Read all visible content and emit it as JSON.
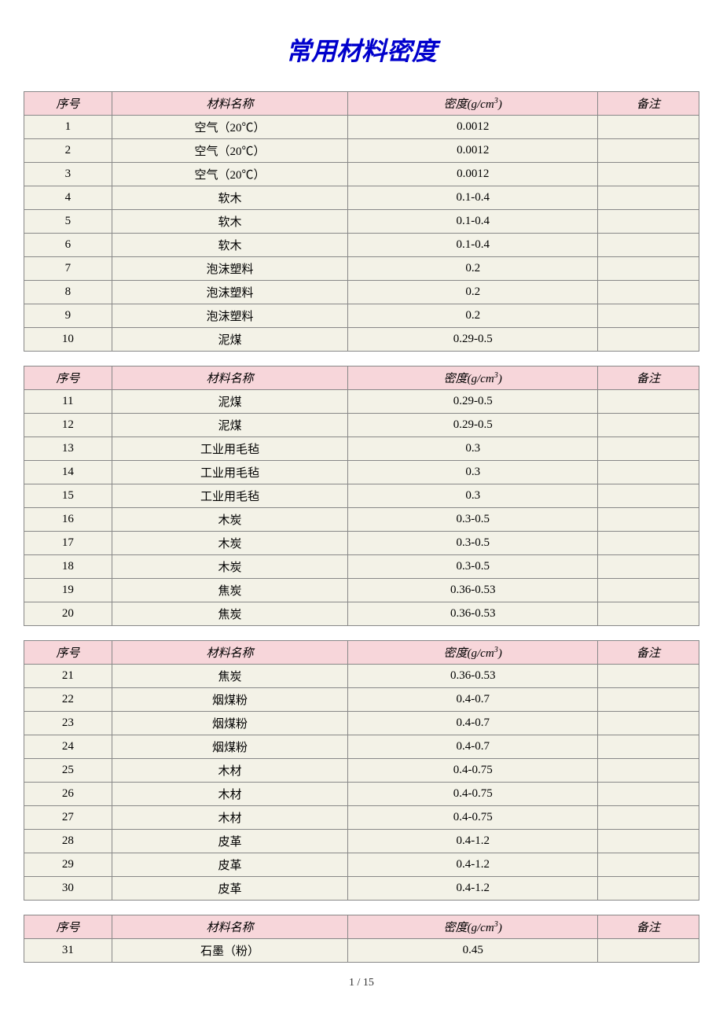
{
  "title": "常用材料密度",
  "headers": {
    "seq": "序号",
    "name": "材料名称",
    "density_prefix": "密度(g/cm",
    "density_suffix": ")",
    "note": "备注"
  },
  "colors": {
    "title": "#0000cc",
    "header_bg": "#f7d6da",
    "row_bg": "#f3f2e7",
    "border": "#888888",
    "page_bg": "#ffffff"
  },
  "tables": [
    {
      "rows": [
        {
          "seq": "1",
          "name": "空气（20℃）",
          "density": "0.0012",
          "note": ""
        },
        {
          "seq": "2",
          "name": "空气（20℃）",
          "density": "0.0012",
          "note": ""
        },
        {
          "seq": "3",
          "name": "空气（20℃）",
          "density": "0.0012",
          "note": ""
        },
        {
          "seq": "4",
          "name": "软木",
          "density": "0.1-0.4",
          "note": ""
        },
        {
          "seq": "5",
          "name": "软木",
          "density": "0.1-0.4",
          "note": ""
        },
        {
          "seq": "6",
          "name": "软木",
          "density": "0.1-0.4",
          "note": ""
        },
        {
          "seq": "7",
          "name": "泡沫塑料",
          "density": "0.2",
          "note": ""
        },
        {
          "seq": "8",
          "name": "泡沫塑料",
          "density": "0.2",
          "note": ""
        },
        {
          "seq": "9",
          "name": "泡沫塑料",
          "density": "0.2",
          "note": ""
        },
        {
          "seq": "10",
          "name": "泥煤",
          "density": "0.29-0.5",
          "note": ""
        }
      ]
    },
    {
      "rows": [
        {
          "seq": "11",
          "name": "泥煤",
          "density": "0.29-0.5",
          "note": ""
        },
        {
          "seq": "12",
          "name": "泥煤",
          "density": "0.29-0.5",
          "note": ""
        },
        {
          "seq": "13",
          "name": "工业用毛毡",
          "density": "0.3",
          "note": ""
        },
        {
          "seq": "14",
          "name": "工业用毛毡",
          "density": "0.3",
          "note": ""
        },
        {
          "seq": "15",
          "name": "工业用毛毡",
          "density": "0.3",
          "note": ""
        },
        {
          "seq": "16",
          "name": "木炭",
          "density": "0.3-0.5",
          "note": ""
        },
        {
          "seq": "17",
          "name": "木炭",
          "density": "0.3-0.5",
          "note": ""
        },
        {
          "seq": "18",
          "name": "木炭",
          "density": "0.3-0.5",
          "note": ""
        },
        {
          "seq": "19",
          "name": "焦炭",
          "density": "0.36-0.53",
          "note": ""
        },
        {
          "seq": "20",
          "name": "焦炭",
          "density": "0.36-0.53",
          "note": ""
        }
      ]
    },
    {
      "rows": [
        {
          "seq": "21",
          "name": "焦炭",
          "density": "0.36-0.53",
          "note": ""
        },
        {
          "seq": "22",
          "name": "烟煤粉",
          "density": "0.4-0.7",
          "note": ""
        },
        {
          "seq": "23",
          "name": "烟煤粉",
          "density": "0.4-0.7",
          "note": ""
        },
        {
          "seq": "24",
          "name": "烟煤粉",
          "density": "0.4-0.7",
          "note": ""
        },
        {
          "seq": "25",
          "name": "木材",
          "density": "0.4-0.75",
          "note": ""
        },
        {
          "seq": "26",
          "name": "木材",
          "density": "0.4-0.75",
          "note": ""
        },
        {
          "seq": "27",
          "name": "木材",
          "density": "0.4-0.75",
          "note": ""
        },
        {
          "seq": "28",
          "name": "皮革",
          "density": "0.4-1.2",
          "note": ""
        },
        {
          "seq": "29",
          "name": "皮革",
          "density": "0.4-1.2",
          "note": ""
        },
        {
          "seq": "30",
          "name": "皮革",
          "density": "0.4-1.2",
          "note": ""
        }
      ]
    },
    {
      "rows": [
        {
          "seq": "31",
          "name": "石墨（粉）",
          "density": "0.45",
          "note": ""
        }
      ]
    }
  ],
  "footer": "1 / 15"
}
